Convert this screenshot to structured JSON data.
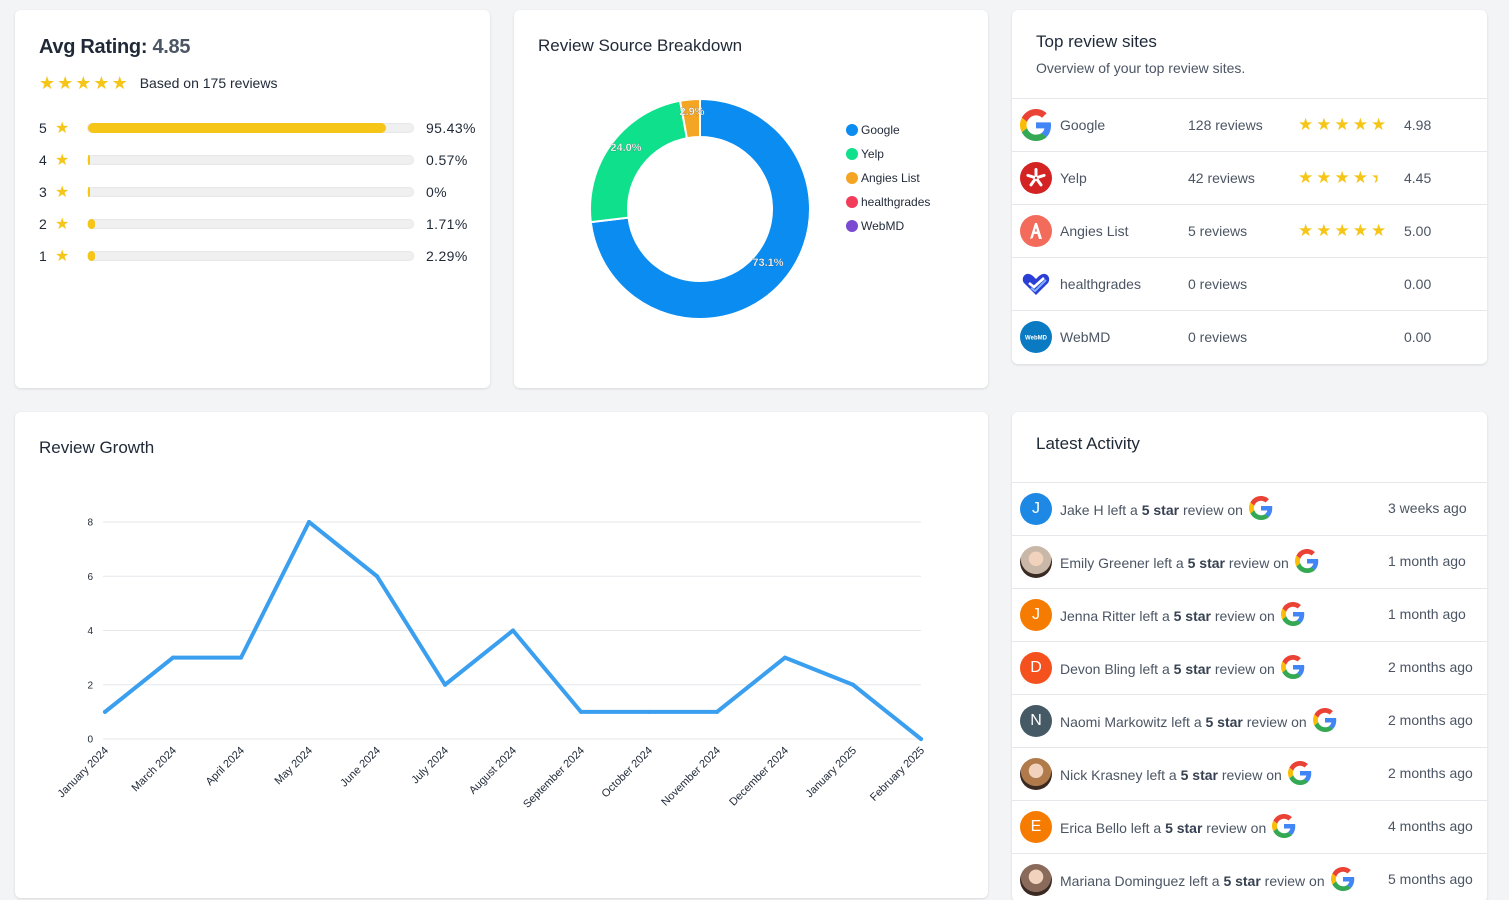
{
  "avg_rating": {
    "label": "Avg Rating:",
    "value": "4.85",
    "star_count": 5,
    "based_on": "Based on 175 reviews",
    "rows": [
      {
        "stars": "5",
        "pct_text": "95.43%",
        "pct": 95.43
      },
      {
        "stars": "4",
        "pct_text": "0.57%",
        "pct": 0.57
      },
      {
        "stars": "3",
        "pct_text": "0%",
        "pct": 0
      },
      {
        "stars": "2",
        "pct_text": "1.71%",
        "pct": 1.71
      },
      {
        "stars": "1",
        "pct_text": "2.29%",
        "pct": 2.29
      }
    ],
    "star_color": "#f5c518"
  },
  "source_breakdown": {
    "title": "Review Source Breakdown",
    "chart_data": {
      "type": "pie",
      "donut": true,
      "categories": [
        "Google",
        "Yelp",
        "Angies List",
        "healthgrades",
        "WebMD"
      ],
      "values": [
        73.1,
        24.0,
        2.9,
        0,
        0
      ],
      "labels": [
        "73.1%",
        "24.0%",
        "2.9%",
        "",
        ""
      ],
      "colors": [
        "#0a8cf0",
        "#0ee08c",
        "#f5a524",
        "#f23c5a",
        "#7a4ad0"
      ],
      "legend": "right"
    }
  },
  "top_sites": {
    "title": "Top review sites",
    "subtitle": "Overview of your top review sites.",
    "rows": [
      {
        "icon": "google-icon",
        "name": "Google",
        "count": "128 reviews",
        "rating": 4.98,
        "score": "4.98",
        "show_stars": true
      },
      {
        "icon": "yelp-icon",
        "name": "Yelp",
        "count": "42 reviews",
        "rating": 4.45,
        "score": "4.45",
        "show_stars": true
      },
      {
        "icon": "angies-list-icon",
        "name": "Angies List",
        "count": "5 reviews",
        "rating": 5.0,
        "score": "5.00",
        "show_stars": true
      },
      {
        "icon": "healthgrades-icon",
        "name": "healthgrades",
        "count": "0 reviews",
        "rating": 0,
        "score": "0.00",
        "show_stars": false
      },
      {
        "icon": "webmd-icon",
        "name": "WebMD",
        "count": "0 reviews",
        "rating": 0,
        "score": "0.00",
        "show_stars": false
      }
    ],
    "webmd_logo_text": "WebMD"
  },
  "review_growth": {
    "title": "Review Growth",
    "chart_data": {
      "type": "line",
      "x": [
        "January 2024",
        "March 2024",
        "April 2024",
        "May 2024",
        "June 2024",
        "July 2024",
        "August 2024",
        "September 2024",
        "October 2024",
        "November 2024",
        "December 2024",
        "January 2025",
        "February 2025"
      ],
      "series": [
        {
          "values": [
            1,
            3,
            3,
            8,
            6,
            2,
            4,
            1,
            1,
            1,
            3,
            2,
            0
          ]
        }
      ],
      "ylim": [
        0,
        8
      ],
      "yticks": [
        "0",
        "2",
        "4",
        "6",
        "8"
      ],
      "grid": true,
      "line_color": "#3b9ff0"
    }
  },
  "latest_activity": {
    "title": "Latest Activity",
    "items": [
      {
        "avatar": "J",
        "avatar_color": "#1e88e5",
        "photo": false,
        "name": "Jake H",
        "mid": " left a ",
        "stars": "5 star",
        "tail": " review on",
        "time": "3 weeks ago"
      },
      {
        "avatar": "",
        "avatar_color": "#c9b8a8",
        "photo": true,
        "name": "Emily Greener",
        "mid": " left a ",
        "stars": "5 star",
        "tail": " review on",
        "time": "1 month ago"
      },
      {
        "avatar": "J",
        "avatar_color": "#f57c00",
        "photo": false,
        "name": "Jenna Ritter",
        "mid": " left a ",
        "stars": "5 star",
        "tail": " review on",
        "time": "1 month ago"
      },
      {
        "avatar": "D",
        "avatar_color": "#f4511e",
        "photo": false,
        "name": "Devon Bling",
        "mid": " left a ",
        "stars": "5 star",
        "tail": " review on",
        "time": "2 months ago"
      },
      {
        "avatar": "N",
        "avatar_color": "#455a64",
        "photo": false,
        "name": "Naomi Markowitz",
        "mid": " left a ",
        "stars": "5 star",
        "tail": " review on",
        "time": "2 months ago"
      },
      {
        "avatar": "",
        "avatar_color": "#b07a4a",
        "photo": true,
        "name": "Nick Krasney",
        "mid": " left a ",
        "stars": "5 star",
        "tail": " review on",
        "time": "2 months ago"
      },
      {
        "avatar": "E",
        "avatar_color": "#f57c00",
        "photo": false,
        "name": "Erica Bello",
        "mid": " left a ",
        "stars": "5 star",
        "tail": " review on",
        "time": "4 months ago"
      },
      {
        "avatar": "",
        "avatar_color": "#8a6a5a",
        "photo": true,
        "name": "Mariana Dominguez",
        "mid": " left a ",
        "stars": "5 star",
        "tail": " review on",
        "time": "5 months ago"
      }
    ]
  }
}
